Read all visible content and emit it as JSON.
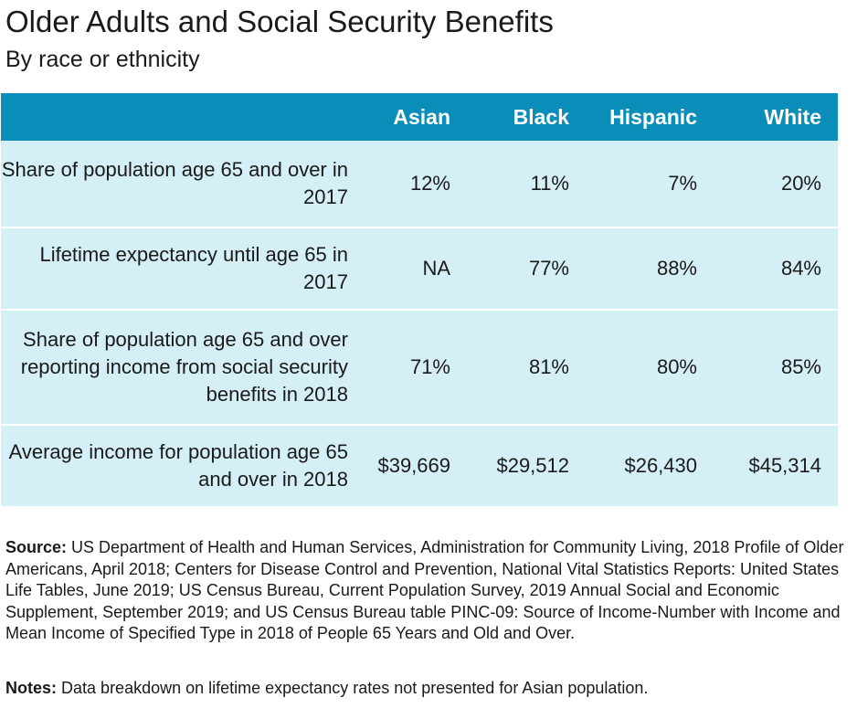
{
  "header": {
    "title": "Older Adults and Social Security Benefits",
    "subtitle": "By race or ethnicity"
  },
  "chart_data": {
    "type": "table",
    "title": "Older Adults and Social Security Benefits",
    "subtitle": "By race or ethnicity",
    "columns": [
      "",
      "Asian",
      "Black",
      "Hispanic",
      "White"
    ],
    "rows": [
      {
        "label": "Share of population age 65 and over in 2017",
        "values": [
          "12%",
          "11%",
          "7%",
          "20%"
        ]
      },
      {
        "label": "Lifetime expectancy until age 65 in 2017",
        "values": [
          "NA",
          "77%",
          "88%",
          "84%"
        ]
      },
      {
        "label": "Share of population age 65 and over reporting income from social security benefits in 2018",
        "values": [
          "71%",
          "81%",
          "80%",
          "85%"
        ]
      },
      {
        "label": "Average income for population age 65 and over in 2018",
        "values": [
          "$39,669",
          "$29,512",
          "$26,430",
          "$45,314"
        ]
      }
    ]
  },
  "footer": {
    "source_label": "Source:",
    "source_text": "US Department of Health and Human Services, Administration for Community Living, 2018 Profile of Older Americans, April 2018; Centers for Disease Control and Prevention, National Vital Statistics Reports: United States Life Tables, June 2019; US Census Bureau, Current Population Survey, 2019 Annual Social and Economic Supplement, September 2019; and US Census Bureau table PINC-09: Source of Income-Number with Income and Mean Income of Specified Type in 2018 of People 65 Years and Old and Over.",
    "notes_label": "Notes:",
    "notes_text": "Data breakdown on lifetime expectancy rates not presented for Asian population."
  },
  "colors": {
    "header_bg": "#0a8db8",
    "row_bg": "#d4eff6",
    "header_text": "#ffffff",
    "body_text": "#1a1a1a"
  }
}
